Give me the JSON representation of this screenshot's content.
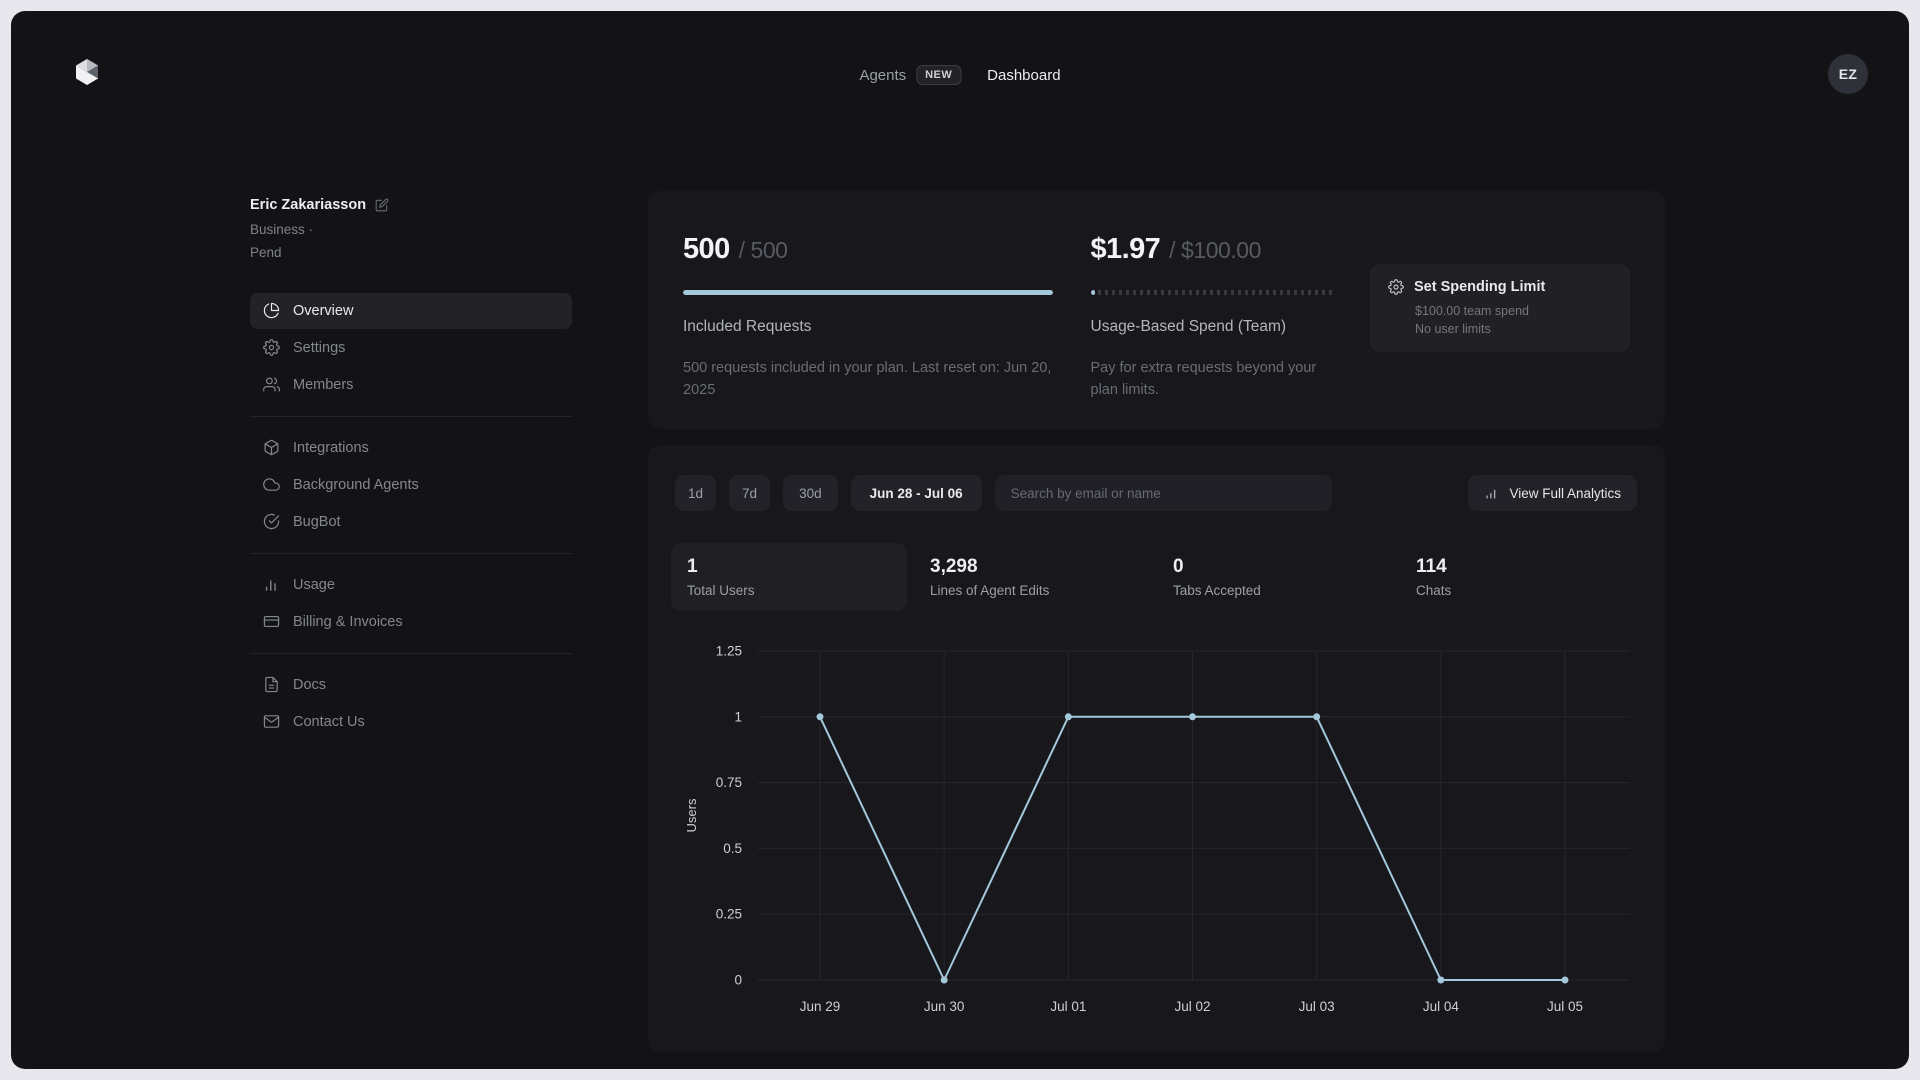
{
  "nav": {
    "agents_label": "Agents",
    "new_badge": "NEW",
    "dashboard_label": "Dashboard",
    "avatar_initials": "EZ"
  },
  "sidebar": {
    "user": {
      "name": "Eric Zakariasson",
      "plan_line1": "Business ·",
      "plan_line2": "Pend"
    },
    "items": [
      {
        "label": "Overview"
      },
      {
        "label": "Settings"
      },
      {
        "label": "Members"
      },
      {
        "label": "Integrations"
      },
      {
        "label": "Background Agents"
      },
      {
        "label": "BugBot"
      },
      {
        "label": "Usage"
      },
      {
        "label": "Billing & Invoices"
      },
      {
        "label": "Docs"
      },
      {
        "label": "Contact Us"
      }
    ]
  },
  "usage_summary": {
    "included": {
      "used": "500",
      "total": "/ 500",
      "progress_pct": 100,
      "title": "Included Requests",
      "description": "500 requests included in your plan. Last reset on: Jun 20, 2025"
    },
    "spend": {
      "used": "$1.97",
      "total": "/ $100.00",
      "progress_pct": 2,
      "title": "Usage-Based Spend (Team)",
      "description": "Pay for extra requests beyond your plan limits."
    },
    "limit_box": {
      "title": "Set Spending Limit",
      "line1": "$100.00 team spend",
      "line2": "No user limits"
    }
  },
  "analytics": {
    "filters": [
      "1d",
      "7d",
      "30d"
    ],
    "date_range": "Jun 28 - Jul 06",
    "search_placeholder": "Search by email or name",
    "view_analytics_label": "View Full Analytics",
    "stats": [
      {
        "value": "1",
        "label": "Total Users"
      },
      {
        "value": "3,298",
        "label": "Lines of Agent Edits"
      },
      {
        "value": "0",
        "label": "Tabs Accepted"
      },
      {
        "value": "114",
        "label": "Chats"
      }
    ]
  },
  "chart_data": {
    "type": "line",
    "categories": [
      "Jun 29",
      "Jun 30",
      "Jul 01",
      "Jul 02",
      "Jul 03",
      "Jul 04",
      "Jul 05"
    ],
    "values": [
      1,
      0,
      1,
      1,
      1,
      0,
      0
    ],
    "title": "",
    "xlabel": "",
    "ylabel": "Users",
    "yticks": [
      0,
      0.25,
      0.5,
      0.75,
      1,
      1.25
    ],
    "ylim": [
      0,
      1.25
    ],
    "grid": true,
    "legend": false,
    "line_color": "#a4c8db",
    "grid_color": "#26262b",
    "tick_color": "#ccd0d4"
  },
  "colors": {
    "accent": "#a4c8db",
    "card_bg": "#18181c",
    "app_bg": "#131316"
  }
}
